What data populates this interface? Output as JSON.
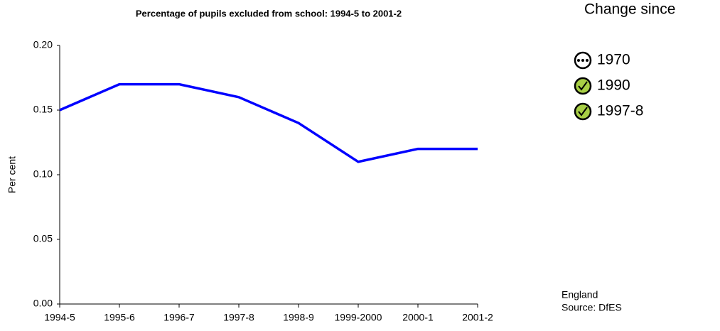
{
  "chart_data": {
    "type": "line",
    "title": "Percentage of pupils excluded  from school: 1994-5 to 2001-2",
    "y_label": "Per cent",
    "categories": [
      "1994-5",
      "1995-6",
      "1996-7",
      "1997-8",
      "1998-9",
      "1999-2000",
      "2000-1",
      "2001-2"
    ],
    "series": [
      {
        "name": "Percentage of pupils excluded",
        "color": "#0000ff",
        "values": [
          0.15,
          0.17,
          0.17,
          0.16,
          0.14,
          0.11,
          0.12,
          0.12
        ]
      }
    ],
    "ylim": [
      0,
      0.2
    ],
    "yticks": [
      {
        "value": 0,
        "label": "0.00"
      },
      {
        "value": 0.05,
        "label": "0.05"
      },
      {
        "value": 0.1,
        "label": "0.10"
      },
      {
        "value": 0.15,
        "label": "0.15"
      },
      {
        "value": 0.2,
        "label": "0.20"
      }
    ],
    "grid": false,
    "change_since": {
      "title": "Change since",
      "items": [
        "1970",
        "1990",
        "1997-8"
      ]
    },
    "notes": [
      "England",
      "Source: DfES"
    ]
  }
}
